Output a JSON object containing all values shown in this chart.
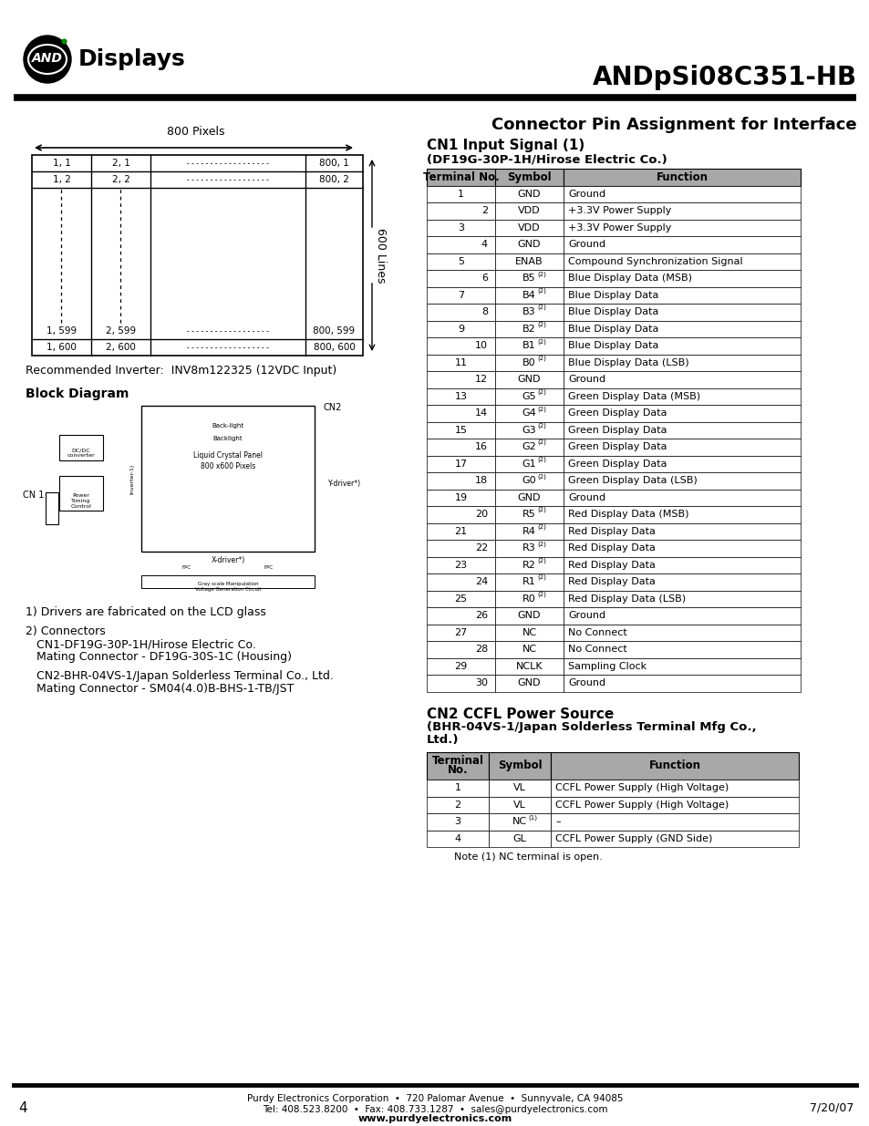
{
  "title_model": "ANDpSi08C351-HB",
  "title_subject": "Connector Pin Assignment for Interface",
  "pixel_label": "800 Pixels",
  "lines_label": "600 Lines",
  "inverter_text": "Recommended Inverter:  INV8m122325 (12VDC Input)",
  "block_diagram_title": "Block Diagram",
  "cn1_section_title": "CN1 Input Signal (1)",
  "cn1_section_subtitle": "(DF19G-30P-1H/Hirose Electric Co.)",
  "cn1_headers": [
    "Terminal No.",
    "Symbol",
    "Function"
  ],
  "cn1_rows": [
    [
      "1",
      "",
      "GND",
      "Ground"
    ],
    [
      "",
      "2",
      "VDD",
      "+3.3V Power Supply"
    ],
    [
      "3",
      "",
      "VDD",
      "+3.3V Power Supply"
    ],
    [
      "",
      "4",
      "GND",
      "Ground"
    ],
    [
      "5",
      "",
      "ENAB",
      "Compound Synchronization Signal"
    ],
    [
      "",
      "6",
      "B5(2)",
      "Blue Display Data (MSB)"
    ],
    [
      "7",
      "",
      "B4(2)",
      "Blue Display Data"
    ],
    [
      "",
      "8",
      "B3(2)",
      "Blue Display Data"
    ],
    [
      "9",
      "",
      "B2(2)",
      "Blue Display Data"
    ],
    [
      "",
      "10",
      "B1(2)",
      "Blue Display Data"
    ],
    [
      "11",
      "",
      "B0(2)",
      "Blue Display Data (LSB)"
    ],
    [
      "",
      "12",
      "GND",
      "Ground"
    ],
    [
      "13",
      "",
      "G5(2)",
      "Green Display Data (MSB)"
    ],
    [
      "",
      "14",
      "G4(2)",
      "Green Display Data"
    ],
    [
      "15",
      "",
      "G3(2)",
      "Green Display Data"
    ],
    [
      "",
      "16",
      "G2(2)",
      "Green Display Data"
    ],
    [
      "17",
      "",
      "G1(2)",
      "Green Display Data"
    ],
    [
      "",
      "18",
      "G0(2)",
      "Green Display Data (LSB)"
    ],
    [
      "19",
      "",
      "GND",
      "Ground"
    ],
    [
      "",
      "20",
      "R5(2)",
      "Red Display Data (MSB)"
    ],
    [
      "21",
      "",
      "R4(2)",
      "Red Display Data"
    ],
    [
      "",
      "22",
      "R3(2)",
      "Red Display Data"
    ],
    [
      "23",
      "",
      "R2(2)",
      "Red Display Data"
    ],
    [
      "",
      "24",
      "R1(2)",
      "Red Display Data"
    ],
    [
      "25",
      "",
      "R0(2)",
      "Red Display Data (LSB)"
    ],
    [
      "",
      "26",
      "GND",
      "Ground"
    ],
    [
      "27",
      "",
      "NC",
      "No Connect"
    ],
    [
      "",
      "28",
      "NC",
      "No Connect"
    ],
    [
      "29",
      "",
      "NCLK",
      "Sampling Clock"
    ],
    [
      "",
      "30",
      "GND",
      "Ground"
    ]
  ],
  "cn2_section_title": "CN2 CCFL Power Source",
  "cn2_section_subtitle_l1": "(BHR-04VS-1/Japan Solderless Terminal Mfg Co.,",
  "cn2_section_subtitle_l2": "Ltd.)",
  "cn2_headers": [
    "Terminal\nNo.",
    "Symbol",
    "Function"
  ],
  "cn2_rows": [
    [
      "1",
      "VL",
      "CCFL Power Supply (High Voltage)"
    ],
    [
      "2",
      "VL",
      "CCFL Power Supply (High Voltage)"
    ],
    [
      "3",
      "NC(1)",
      "–"
    ],
    [
      "4",
      "GL",
      "CCFL Power Supply (GND Side)"
    ]
  ],
  "cn2_note": "Note (1) NC terminal is open.",
  "drivers_text": "1) Drivers are fabricated on the LCD glass",
  "connectors_text_1": "2) Connectors",
  "connectors_text_2": "   CN1-DF19G-30P-1H/Hirose Electric Co.",
  "connectors_text_3": "   Mating Connector - DF19G-30S-1C (Housing)",
  "connectors_text_4": "   CN2-BHR-04VS-1/Japan Solderless Terminal Co., Ltd.",
  "connectors_text_5": "   Mating Connector - SM04(4.0)B-BHS-1-TB/JST",
  "footer_company": "Purdy Electronics Corporation  •  720 Palomar Avenue  •  Sunnyvale, CA 94085",
  "footer_contact": "Tel: 408.523.8200  •  Fax: 408.733.1287  •  sales@purdyelectronics.com",
  "footer_web": "www.purdyelectronics.com",
  "footer_page": "4",
  "footer_date": "7/20/07",
  "table_header_color": "#a8a8a8",
  "bg_color": "#ffffff"
}
